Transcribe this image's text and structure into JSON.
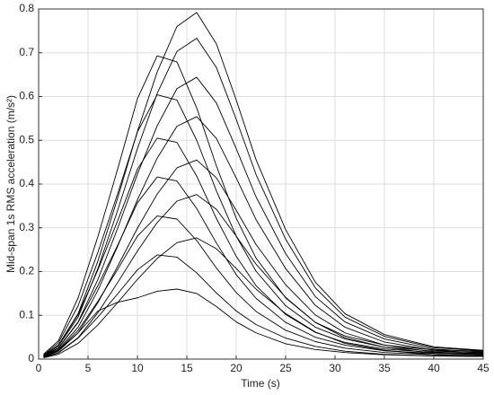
{
  "chart_data": {
    "type": "line",
    "xlabel": "Time (s)",
    "ylabel": "Mid-span 1s RMS acceleration (m/s²)",
    "x": [
      0.5,
      2,
      4,
      6,
      8,
      10,
      12,
      14,
      16,
      18,
      20,
      22,
      25,
      28,
      31,
      35,
      40,
      45
    ],
    "xlim": [
      0,
      45
    ],
    "xticks": [
      0,
      5,
      10,
      15,
      20,
      25,
      30,
      35,
      40,
      45
    ],
    "ylim": [
      0,
      0.8
    ],
    "yticks": [
      0,
      0.1,
      0.2,
      0.3,
      0.4,
      0.5,
      0.6,
      0.7,
      0.8
    ],
    "grid": true,
    "series": [
      {
        "color": "#000000",
        "values": [
          0.008,
          0.032,
          0.104,
          0.224,
          0.368,
          0.52,
          0.656,
          0.76,
          0.792,
          0.72,
          0.592,
          0.456,
          0.296,
          0.176,
          0.104,
          0.056,
          0.028,
          0.02
        ]
      },
      {
        "color": "#000000",
        "values": [
          0.007,
          0.03,
          0.096,
          0.207,
          0.34,
          0.481,
          0.607,
          0.703,
          0.733,
          0.666,
          0.548,
          0.422,
          0.274,
          0.163,
          0.096,
          0.052,
          0.026,
          0.019
        ]
      },
      {
        "color": "#000000",
        "values": [
          0.007,
          0.026,
          0.085,
          0.182,
          0.299,
          0.423,
          0.533,
          0.618,
          0.644,
          0.585,
          0.481,
          0.371,
          0.241,
          0.143,
          0.085,
          0.046,
          0.023,
          0.016
        ]
      },
      {
        "color": "#000000",
        "values": [
          0.006,
          0.022,
          0.073,
          0.157,
          0.258,
          0.364,
          0.459,
          0.532,
          0.554,
          0.504,
          0.414,
          0.319,
          0.207,
          0.123,
          0.073,
          0.039,
          0.02,
          0.014
        ]
      },
      {
        "color": "#000000",
        "values": [
          0.005,
          0.018,
          0.06,
          0.129,
          0.212,
          0.299,
          0.377,
          0.437,
          0.455,
          0.414,
          0.34,
          0.262,
          0.17,
          0.101,
          0.06,
          0.032,
          0.016,
          0.012
        ]
      },
      {
        "color": "#000000",
        "values": [
          0.004,
          0.015,
          0.049,
          0.106,
          0.175,
          0.247,
          0.312,
          0.361,
          0.376,
          0.342,
          0.281,
          0.217,
          0.141,
          0.084,
          0.049,
          0.027,
          0.013,
          0.01
        ]
      },
      {
        "color": "#000000",
        "values": [
          0.003,
          0.011,
          0.036,
          0.078,
          0.129,
          0.182,
          0.23,
          0.266,
          0.277,
          0.252,
          0.207,
          0.16,
          0.104,
          0.062,
          0.036,
          0.02,
          0.01,
          0.007
        ]
      },
      {
        "color": "#000000",
        "values": [
          0.011,
          0.042,
          0.14,
          0.28,
          0.434,
          0.595,
          0.693,
          0.679,
          0.574,
          0.441,
          0.322,
          0.231,
          0.14,
          0.084,
          0.053,
          0.032,
          0.021,
          0.018
        ]
      },
      {
        "color": "#000000",
        "values": [
          0.009,
          0.037,
          0.122,
          0.244,
          0.378,
          0.519,
          0.604,
          0.592,
          0.5,
          0.384,
          0.281,
          0.201,
          0.122,
          0.073,
          0.046,
          0.027,
          0.018,
          0.015
        ]
      },
      {
        "color": "#000000",
        "values": [
          0.008,
          0.031,
          0.102,
          0.204,
          0.316,
          0.434,
          0.505,
          0.495,
          0.418,
          0.321,
          0.235,
          0.168,
          0.102,
          0.061,
          0.038,
          0.023,
          0.015,
          0.013
        ]
      },
      {
        "color": "#000000",
        "values": [
          0.006,
          0.025,
          0.084,
          0.168,
          0.26,
          0.357,
          0.416,
          0.407,
          0.344,
          0.265,
          0.193,
          0.139,
          0.084,
          0.05,
          0.032,
          0.019,
          0.013,
          0.011
        ]
      },
      {
        "color": "#000000",
        "values": [
          0.005,
          0.02,
          0.066,
          0.132,
          0.205,
          0.281,
          0.327,
          0.32,
          0.271,
          0.208,
          0.152,
          0.109,
          0.066,
          0.04,
          0.025,
          0.015,
          0.01,
          0.008
        ]
      },
      {
        "color": "#000000",
        "values": [
          0.004,
          0.014,
          0.048,
          0.096,
          0.149,
          0.204,
          0.238,
          0.233,
          0.197,
          0.151,
          0.11,
          0.079,
          0.048,
          0.029,
          0.018,
          0.011,
          0.007,
          0.006
        ]
      },
      {
        "color": "#000000",
        "values": [
          0.004,
          0.02,
          0.06,
          0.11,
          0.13,
          0.14,
          0.155,
          0.16,
          0.15,
          0.12,
          0.085,
          0.06,
          0.035,
          0.022,
          0.015,
          0.01,
          0.007,
          0.006
        ]
      }
    ]
  }
}
